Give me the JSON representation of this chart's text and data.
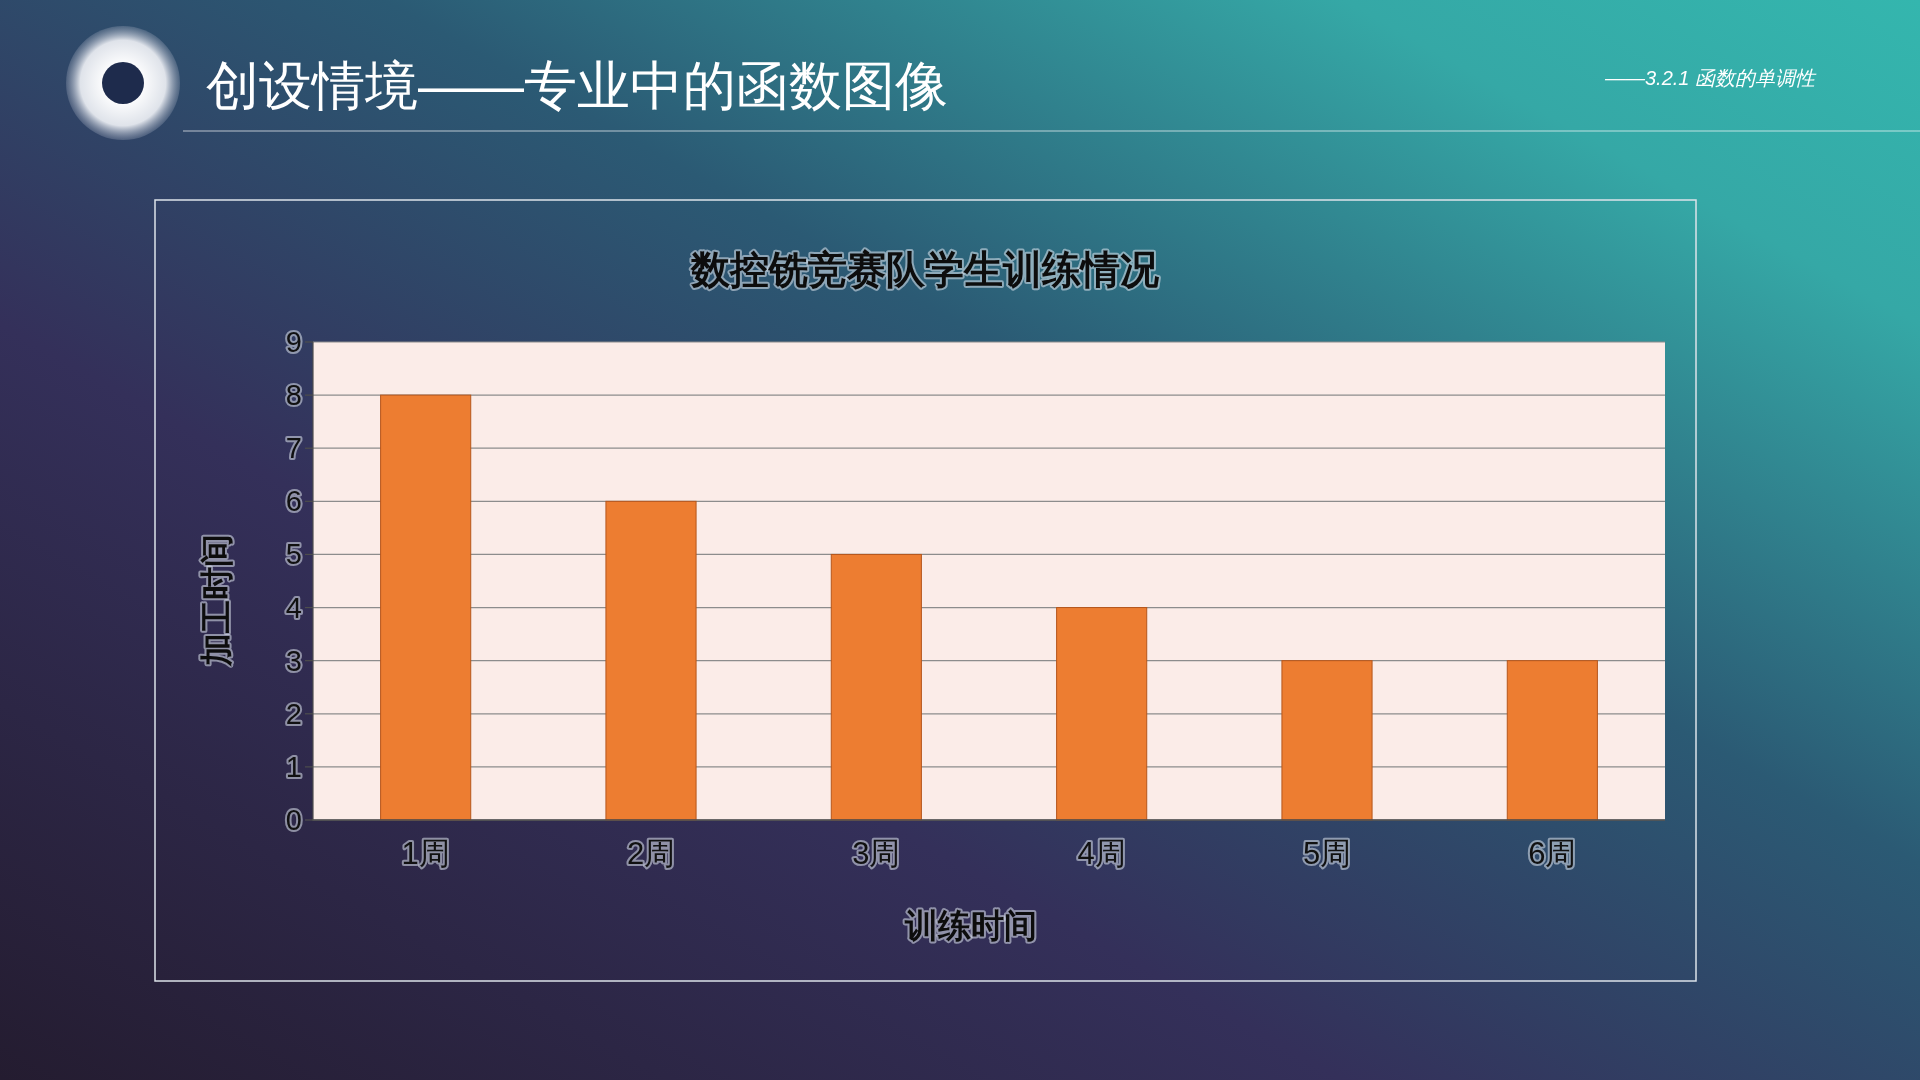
{
  "chart_data": {
    "type": "bar",
    "title": "数控铣竞赛队学生训练情况",
    "xlabel": "训练时间",
    "ylabel": "加工时间",
    "categories": [
      "1周",
      "2周",
      "3周",
      "4周",
      "5周",
      "6周"
    ],
    "values": [
      8,
      6,
      5,
      4,
      3,
      3
    ],
    "color": "#ed7d31",
    "ylim": [
      0,
      9
    ],
    "yticks": [
      0,
      1,
      2,
      3,
      4,
      5,
      6,
      7,
      8,
      9
    ],
    "grid": "y",
    "annotations": [
      "创设情境——专业中的函数图像",
      "——3.2.1  函数的单调性"
    ]
  }
}
